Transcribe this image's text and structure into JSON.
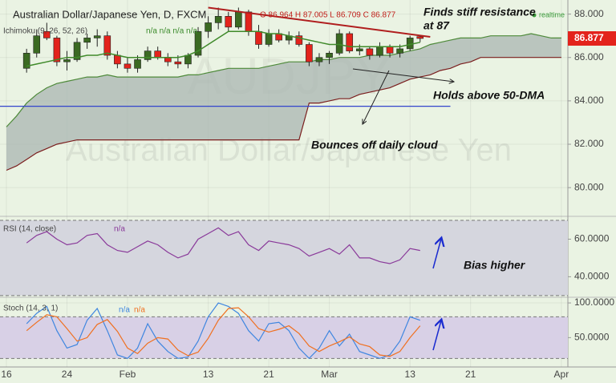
{
  "chart_data": [
    {
      "type": "candlestick",
      "title": "Australian Dollar/Japanese Yen, D, FXCM",
      "ohlc_label": "O 86.964 H 87.005 L 86.709 C 86.877",
      "status": "realtime",
      "indicator_label": "Ichimoku (9, 26, 52, 26)",
      "indicator_values": "n/a n/a n/a n/a",
      "watermark": "Australian Dollar/Japanese Yen",
      "watermark_symbol": "AUDJPY",
      "categories": [
        "16",
        null,
        null,
        null,
        null,
        null,
        "24",
        null,
        null,
        null,
        null,
        null,
        "Feb",
        null,
        null,
        null,
        null,
        null,
        null,
        null,
        "13",
        null,
        null,
        null,
        null,
        null,
        "21",
        null,
        null,
        null,
        null,
        null,
        "Mar",
        null,
        null,
        null,
        null,
        null,
        null,
        null,
        "13",
        null,
        null,
        null,
        null,
        null,
        "21",
        null,
        null,
        null,
        null,
        null,
        null,
        null,
        null,
        "Apr"
      ],
      "open": [
        null,
        null,
        85.5,
        86.2,
        87.2,
        86.9,
        85.8,
        85.9,
        86.7,
        86.9,
        87.0,
        86.1,
        85.7,
        85.5,
        85.9,
        86.3,
        86.0,
        85.8,
        85.7,
        86.1,
        87.2,
        87.6,
        87.9,
        87.4,
        88.1,
        87.2,
        86.6,
        87.1,
        86.8,
        87.0,
        86.6,
        85.8,
        86.0,
        86.2,
        87.1,
        86.3,
        86.4,
        86.1,
        86.5,
        86.2,
        86.4,
        86.964,
        null,
        null,
        null,
        null,
        null,
        null,
        null,
        null,
        null,
        null,
        null,
        null,
        null,
        null
      ],
      "high": [
        null,
        null,
        86.4,
        87.3,
        87.6,
        87.0,
        86.3,
        86.9,
        87.1,
        87.3,
        87.2,
        86.3,
        86.0,
        86.1,
        86.5,
        86.5,
        86.2,
        86.1,
        86.2,
        87.4,
        87.9,
        88.3,
        88.1,
        88.3,
        88.2,
        87.5,
        87.3,
        87.3,
        87.2,
        87.2,
        86.7,
        86.2,
        86.3,
        87.3,
        87.2,
        86.6,
        86.5,
        86.7,
        86.6,
        86.6,
        87.0,
        87.005,
        null,
        null,
        null,
        null,
        null,
        null,
        null,
        null,
        null,
        null,
        null,
        null,
        null,
        null
      ],
      "low": [
        null,
        null,
        85.3,
        86.0,
        86.8,
        85.6,
        85.4,
        85.8,
        86.4,
        86.5,
        85.9,
        85.5,
        85.3,
        85.3,
        85.8,
        85.9,
        85.6,
        85.5,
        85.5,
        86.0,
        86.9,
        87.3,
        87.2,
        87.3,
        87.0,
        86.4,
        86.5,
        86.7,
        86.6,
        86.5,
        85.6,
        85.6,
        85.7,
        86.1,
        86.2,
        86.1,
        85.9,
        86.0,
        86.0,
        86.0,
        86.3,
        86.709,
        null,
        null,
        null,
        null,
        null,
        null,
        null,
        null,
        null,
        null,
        null,
        null,
        null,
        null
      ],
      "close": [
        null,
        null,
        86.2,
        87.0,
        86.9,
        85.8,
        85.9,
        86.7,
        86.9,
        87.0,
        86.1,
        85.7,
        85.5,
        85.9,
        86.3,
        86.0,
        85.8,
        85.7,
        86.1,
        87.2,
        87.6,
        87.9,
        87.4,
        88.1,
        87.2,
        86.6,
        87.1,
        86.8,
        87.0,
        86.6,
        85.8,
        86.0,
        86.2,
        87.1,
        86.3,
        86.4,
        86.1,
        86.5,
        86.2,
        86.4,
        86.9,
        86.877,
        null,
        null,
        null,
        null,
        null,
        null,
        null,
        null,
        null,
        null,
        null,
        null,
        null,
        null
      ],
      "cloud_upper": {
        "color": "#4e8a3a",
        "values": [
          82.8,
          83.3,
          83.9,
          84.3,
          84.6,
          84.8,
          84.9,
          85.0,
          85.1,
          85.1,
          85.2,
          85.1,
          85.1,
          85.1,
          85.1,
          85.1,
          85.1,
          85.1,
          85.2,
          85.2,
          85.3,
          85.4,
          85.5,
          85.5,
          85.5,
          85.5,
          85.6,
          85.7,
          85.8,
          85.8,
          85.8,
          85.9,
          85.9,
          86.0,
          86.0,
          86.0,
          86.1,
          86.1,
          86.1,
          86.2,
          86.3,
          86.4,
          86.6,
          86.7,
          86.8,
          86.9,
          86.9,
          86.9,
          87.0,
          87.0,
          87.0,
          87.0,
          87.1,
          87.0,
          86.9,
          86.9
        ]
      },
      "cloud_lower": {
        "color": "#7a1d1d",
        "values": [
          80.8,
          81.0,
          81.3,
          81.6,
          81.8,
          82.0,
          82.1,
          82.2,
          82.2,
          82.2,
          82.2,
          82.2,
          82.2,
          82.2,
          82.2,
          82.2,
          82.2,
          82.2,
          82.2,
          82.2,
          82.2,
          82.2,
          82.2,
          82.2,
          82.2,
          82.2,
          82.2,
          82.2,
          82.2,
          82.2,
          83.9,
          83.9,
          84.0,
          84.1,
          84.1,
          84.3,
          84.4,
          84.5,
          84.6,
          84.8,
          85.0,
          85.1,
          85.2,
          85.4,
          85.5,
          85.7,
          85.8,
          86.0,
          86.0,
          86.0,
          86.0,
          86.0,
          86.0,
          86.0,
          86.0,
          86.0
        ]
      },
      "cloud_color": "#a9b5b1",
      "ma": {
        "color": "#3f8a2a",
        "values": [
          null,
          null,
          85.6,
          85.7,
          85.8,
          85.9,
          86.0,
          86.0,
          86.1,
          86.1,
          86.2,
          86.1,
          86.0,
          86.0,
          86.0,
          86.0,
          86.0,
          86.0,
          86.1,
          86.3,
          86.6,
          86.9,
          87.2,
          87.2,
          87.2,
          87.2,
          87.1,
          87.1,
          87.0,
          86.9,
          86.8,
          86.7,
          86.6,
          86.6,
          86.5,
          86.5,
          86.5,
          86.5,
          86.5,
          86.5,
          86.6,
          86.7,
          null,
          null,
          null,
          null,
          null,
          null,
          null,
          null,
          null,
          null,
          null,
          null,
          null,
          null
        ]
      },
      "level": {
        "value": 83.75,
        "color": "#3344cc"
      },
      "resistance": {
        "start": 88.3,
        "end": 86.95,
        "color": "#b01e1e"
      },
      "up_color": "#3b6a22",
      "down_color": "#e3231c",
      "last_price": {
        "value": 86.877,
        "label": "86.877",
        "color": "#e3231c"
      },
      "ylim": [
        78.75,
        88.65
      ],
      "yticks": [
        {
          "value": 80,
          "label": "80.000"
        },
        {
          "value": 82,
          "label": "82.000"
        },
        {
          "value": 84,
          "label": "84.000"
        },
        {
          "value": 86,
          "label": "86.000"
        },
        {
          "value": 88,
          "label": "88.000"
        }
      ],
      "annotations": [
        "Finds stiff resistance",
        "at 87",
        "Holds above 50-DMA",
        "Bounces off daily cloud"
      ]
    },
    {
      "type": "line",
      "title": "RSI (14, close)",
      "value_text": "n/a",
      "band": [
        30,
        70
      ],
      "band_color": "#d5d6de",
      "series": [
        {
          "color": "#8a3a9a",
          "values": [
            null,
            null,
            58,
            62,
            64,
            60,
            57,
            58,
            62,
            63,
            57,
            54,
            53,
            56,
            59,
            57,
            53,
            50,
            52,
            60,
            63,
            66,
            62,
            64,
            57,
            54,
            59,
            58,
            57,
            55,
            51,
            53,
            55,
            52,
            57,
            50,
            50,
            48,
            47,
            49,
            55,
            54,
            null,
            null,
            null,
            null,
            null,
            null,
            null,
            null,
            null,
            null,
            null,
            null,
            null,
            null
          ]
        }
      ],
      "ylim": [
        29.5,
        71.3
      ],
      "yticks": [
        {
          "value": 40,
          "label": "40.0000"
        },
        {
          "value": 60,
          "label": "60.0000"
        }
      ],
      "annotations": [
        "Bias higher"
      ]
    },
    {
      "type": "line",
      "title": "Stoch (14, 3, 1)",
      "value_texts": [
        "n/a",
        "n/a"
      ],
      "band": [
        20,
        80
      ],
      "band_color": "#d8d0e6",
      "series": [
        {
          "color": "#3f86e0",
          "values": [
            null,
            null,
            70,
            85,
            95,
            60,
            35,
            40,
            75,
            92,
            60,
            25,
            20,
            35,
            70,
            45,
            30,
            20,
            22,
            45,
            80,
            100,
            95,
            85,
            60,
            45,
            70,
            72,
            60,
            35,
            20,
            35,
            60,
            38,
            55,
            30,
            25,
            20,
            25,
            45,
            80,
            75,
            null,
            null,
            null,
            null,
            null,
            null,
            null,
            null,
            null,
            null,
            null,
            null,
            null,
            null
          ]
        },
        {
          "color": "#f07020",
          "values": [
            null,
            null,
            60,
            72,
            83,
            80,
            63,
            45,
            50,
            69,
            76,
            59,
            35,
            27,
            42,
            50,
            48,
            32,
            24,
            29,
            49,
            75,
            92,
            93,
            80,
            63,
            58,
            62,
            67,
            56,
            38,
            30,
            38,
            44,
            51,
            41,
            37,
            25,
            23,
            30,
            50,
            67,
            null,
            null,
            null,
            null,
            null,
            null,
            null,
            null,
            null,
            null,
            null,
            null,
            null,
            null
          ]
        }
      ],
      "ylim": [
        10,
        107
      ],
      "yticks": [
        {
          "value": 50,
          "label": "50.0000"
        },
        {
          "value": 100,
          "label": "100.0000"
        }
      ]
    }
  ]
}
